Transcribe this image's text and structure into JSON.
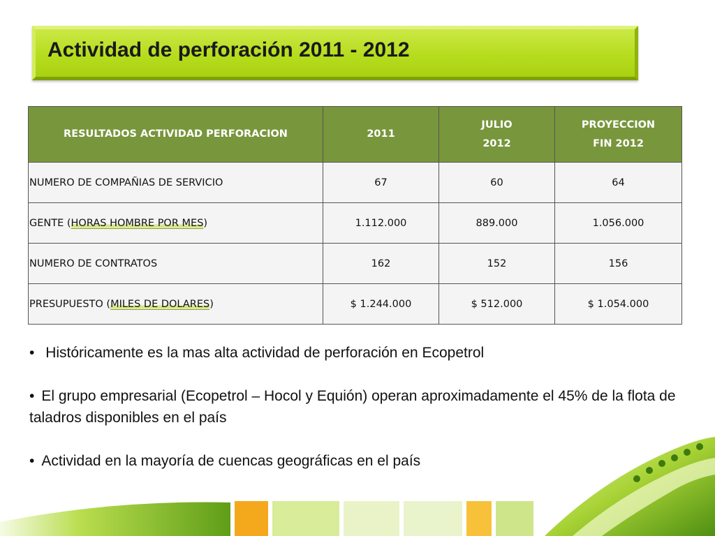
{
  "title": "Actividad de perforación 2011 - 2012",
  "table": {
    "headers": [
      {
        "lines": [
          "RESULTADOS ACTIVIDAD PERFORACION"
        ]
      },
      {
        "lines": [
          "2011"
        ]
      },
      {
        "lines": [
          "JULIO",
          "2012"
        ]
      },
      {
        "lines": [
          "PROYECCION",
          "FIN 2012"
        ]
      }
    ],
    "rows": [
      {
        "label_pre": "NUMERO DE COMPAÑIAS DE SERVICIO",
        "label_hl": "",
        "label_post": "",
        "values": [
          "67",
          "60",
          "64"
        ]
      },
      {
        "label_pre": "GENTE (",
        "label_hl": "HORAS HOMBRE POR MES",
        "label_post": ")",
        "values": [
          "1.112.000",
          "889.000",
          "1.056.000"
        ]
      },
      {
        "label_pre": "NUMERO DE CONTRATOS",
        "label_hl": "",
        "label_post": "",
        "values": [
          "162",
          "152",
          "156"
        ]
      },
      {
        "label_pre": "PRESUPUESTO (",
        "label_hl": "MILES DE DOLARES",
        "label_post": ")",
        "values": [
          "$ 1.244.000",
          "$ 512.000",
          "$ 1.054.000"
        ]
      }
    ]
  },
  "bullets": [
    {
      "dot": "•",
      "text": " Históricamente es la mas alta actividad de perforación en Ecopetrol"
    },
    {
      "dot": "•",
      "text": "El grupo empresarial (Ecopetrol – Hocol y Equión) operan aproximadamente el 45% de la flota de taladros disponibles en el país"
    },
    {
      "dot": "•",
      "text": "Actividad en la mayoría de cuencas geográficas en el país"
    }
  ],
  "colors": {
    "banner": "#b6dc1e",
    "table_header": "#78963c",
    "table_cell": "#f4f4f4",
    "accent_orange": "#f4a81c",
    "accent_green": "#6aa71d"
  }
}
